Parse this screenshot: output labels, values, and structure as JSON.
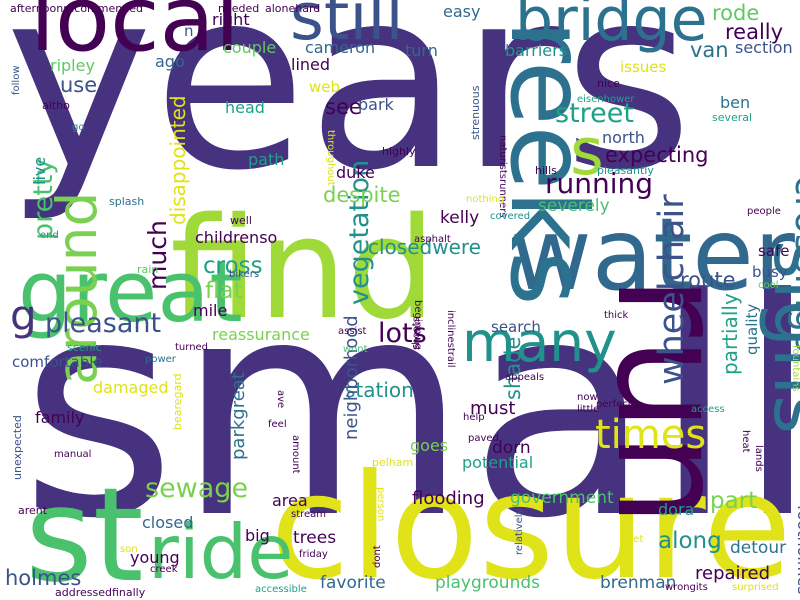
{
  "colors": {
    "background": "#ffffff",
    "palette": [
      "#440154",
      "#46327e",
      "#365c8d",
      "#277f8e",
      "#1fa187",
      "#4ac16d",
      "#a0da39",
      "#fde725"
    ]
  },
  "words": [
    {
      "text": "years",
      "color": "#46327e"
    },
    {
      "text": "small",
      "color": "#46327e"
    },
    {
      "text": "find",
      "color": "#a0da39"
    },
    {
      "text": "closure",
      "color": "#dfe318"
    },
    {
      "text": "water",
      "color": "#31688e"
    },
    {
      "text": "run",
      "color": "#440154"
    },
    {
      "text": "local",
      "color": "#440154"
    },
    {
      "text": "still",
      "color": "#3b528b"
    },
    {
      "text": "bridge",
      "color": "#2c728e"
    },
    {
      "text": "st",
      "color": "#4ac16d"
    },
    {
      "text": "great",
      "color": "#4ac16d"
    },
    {
      "text": "reeks",
      "color": "#2c728e"
    },
    {
      "text": "signs",
      "color": "#2c728e"
    },
    {
      "text": "ride",
      "color": "#4ac16d"
    },
    {
      "text": "s",
      "color": "#a0da39"
    },
    {
      "text": "many",
      "color": "#21918c"
    },
    {
      "text": "around",
      "color": "#7ad151"
    },
    {
      "text": "g",
      "color": "#46327e"
    },
    {
      "text": "times",
      "color": "#dfe318"
    },
    {
      "text": "crossings",
      "color": "#2c728e"
    },
    {
      "text": "wheelchair",
      "color": "#3b528b"
    },
    {
      "text": "running",
      "color": "#440154"
    },
    {
      "text": "sewage",
      "color": "#7ad151"
    },
    {
      "text": "pleasant",
      "color": "#3b528b"
    },
    {
      "text": "vegetation",
      "color": "#21918c"
    },
    {
      "text": "street",
      "color": "#1fa187"
    },
    {
      "text": "pretty",
      "color": "#4ac16d"
    },
    {
      "text": "lots",
      "color": "#440154"
    },
    {
      "text": "much",
      "color": "#440154"
    },
    {
      "text": "cross",
      "color": "#1fa187"
    },
    {
      "text": "flat",
      "color": "#7ad151"
    },
    {
      "text": "part",
      "color": "#7ad151"
    },
    {
      "text": "along",
      "color": "#21918c"
    },
    {
      "text": "route",
      "color": "#3b528b"
    },
    {
      "text": "shade",
      "color": "#21918c"
    },
    {
      "text": "expecting",
      "color": "#440154"
    },
    {
      "text": "holmes",
      "color": "#3b528b"
    },
    {
      "text": "use",
      "color": "#3b528b"
    },
    {
      "text": "see",
      "color": "#440154"
    },
    {
      "text": "despite",
      "color": "#7ad151"
    },
    {
      "text": "rode",
      "color": "#5ec962"
    },
    {
      "text": "really",
      "color": "#440154"
    },
    {
      "text": "van",
      "color": "#2c728e"
    },
    {
      "text": "partially",
      "color": "#1fa187"
    },
    {
      "text": "disappointed",
      "color": "#dfe318"
    },
    {
      "text": "closedwere",
      "color": "#21918c"
    },
    {
      "text": "station",
      "color": "#21918c"
    },
    {
      "text": "neighborhood",
      "color": "#3b528b"
    },
    {
      "text": "parkgreat",
      "color": "#2c728e"
    },
    {
      "text": "must",
      "color": "#440154"
    },
    {
      "text": "repaired",
      "color": "#440154"
    },
    {
      "text": "flooding",
      "color": "#440154"
    },
    {
      "text": "government",
      "color": "#4ac16d"
    },
    {
      "text": "severely",
      "color": "#4ac16d"
    },
    {
      "text": "kelly",
      "color": "#440154"
    },
    {
      "text": "dorn",
      "color": "#440154"
    },
    {
      "text": "trees",
      "color": "#440154"
    },
    {
      "text": "favorite",
      "color": "#31688e"
    },
    {
      "text": "playgrounds",
      "color": "#4ac16d"
    },
    {
      "text": "brenman",
      "color": "#31688e"
    },
    {
      "text": "detour",
      "color": "#2c728e"
    },
    {
      "text": "dora",
      "color": "#1fa187"
    },
    {
      "text": "footholmes",
      "color": "#3b528b"
    },
    {
      "text": "north",
      "color": "#3b528b"
    },
    {
      "text": "ben",
      "color": "#2c728e"
    },
    {
      "text": "section",
      "color": "#3b528b"
    },
    {
      "text": "barriers",
      "color": "#21918c"
    },
    {
      "text": "couple",
      "color": "#5ec962"
    },
    {
      "text": "cameron",
      "color": "#31688e"
    },
    {
      "text": "turn",
      "color": "#31688e"
    },
    {
      "text": "easy",
      "color": "#31688e"
    },
    {
      "text": "right",
      "color": "#440154"
    },
    {
      "text": "lined",
      "color": "#440154"
    },
    {
      "text": "ripley",
      "color": "#5ec962"
    },
    {
      "text": "ago",
      "color": "#31688e"
    },
    {
      "text": "issues",
      "color": "#dfe318"
    },
    {
      "text": "head",
      "color": "#1fa187"
    },
    {
      "text": "park",
      "color": "#3b528b"
    },
    {
      "text": "path",
      "color": "#1fa187"
    },
    {
      "text": "duke",
      "color": "#440154"
    },
    {
      "text": "live",
      "color": "#21918c"
    },
    {
      "text": "childrenso",
      "color": "#440154"
    },
    {
      "text": "mile",
      "color": "#440154"
    },
    {
      "text": "reassurance",
      "color": "#7ad151"
    },
    {
      "text": "comfortable",
      "color": "#3b528b"
    },
    {
      "text": "damaged",
      "color": "#dfe318"
    },
    {
      "text": "family",
      "color": "#440154"
    },
    {
      "text": "area",
      "color": "#440154"
    },
    {
      "text": "closed",
      "color": "#31688e"
    },
    {
      "text": "young",
      "color": "#440154"
    },
    {
      "text": "big",
      "color": "#440154"
    },
    {
      "text": "goes",
      "color": "#7ad151"
    },
    {
      "text": "potential",
      "color": "#1fa187"
    },
    {
      "text": "safe",
      "color": "#440154"
    },
    {
      "text": "busy",
      "color": "#3b528b"
    },
    {
      "text": "quality",
      "color": "#2c728e"
    },
    {
      "text": "search",
      "color": "#3b528b"
    },
    {
      "text": "n",
      "color": "#3b528b"
    },
    {
      "text": "web",
      "color": "#dfe318"
    },
    {
      "text": "nice",
      "color": "#440154"
    },
    {
      "text": "eisenhower",
      "color": "#1fa187"
    },
    {
      "text": "several",
      "color": "#1fa187"
    },
    {
      "text": "highly",
      "color": "#440154"
    },
    {
      "text": "hills",
      "color": "#440154"
    },
    {
      "text": "pleasantly",
      "color": "#21918c"
    },
    {
      "text": "people",
      "color": "#440154"
    },
    {
      "text": "cool",
      "color": "#5ec962"
    },
    {
      "text": "fountains",
      "color": "#a0da39"
    },
    {
      "text": "afternoonrecommended",
      "color": "#440154"
    },
    {
      "text": "needed",
      "color": "#440154"
    },
    {
      "text": "alonehard",
      "color": "#440154"
    },
    {
      "text": "follow",
      "color": "#3b528b"
    },
    {
      "text": "altho",
      "color": "#440154"
    },
    {
      "text": "go",
      "color": "#21918c"
    },
    {
      "text": "throughout",
      "color": "#dfe318"
    },
    {
      "text": "strenuous",
      "color": "#3b528b"
    },
    {
      "text": "naturistsrunners",
      "color": "#440154"
    },
    {
      "text": "nothing",
      "color": "#dfe318"
    },
    {
      "text": "covered",
      "color": "#21918c"
    },
    {
      "text": "asphalt",
      "color": "#440154"
    },
    {
      "text": "well",
      "color": "#440154"
    },
    {
      "text": "splash",
      "color": "#2c728e"
    },
    {
      "text": "end",
      "color": "#21918c"
    },
    {
      "text": "rain",
      "color": "#5ec962"
    },
    {
      "text": "bikers",
      "color": "#3b528b"
    },
    {
      "text": "assist",
      "color": "#440154"
    },
    {
      "text": "wont",
      "color": "#4ac16d"
    },
    {
      "text": "shoots",
      "color": "#440154"
    },
    {
      "text": "beginning",
      "color": "#440154"
    },
    {
      "text": "scenic",
      "color": "#1fa187"
    },
    {
      "text": "turned",
      "color": "#440154"
    },
    {
      "text": "power",
      "color": "#2c728e"
    },
    {
      "text": "thick",
      "color": "#440154"
    },
    {
      "text": "appeals",
      "color": "#440154"
    },
    {
      "text": "inclinestrail",
      "color": "#440154"
    },
    {
      "text": "now",
      "color": "#440154"
    },
    {
      "text": "perfect",
      "color": "#440154"
    },
    {
      "text": "access",
      "color": "#1fa187"
    },
    {
      "text": "little",
      "color": "#440154"
    },
    {
      "text": "help",
      "color": "#440154"
    },
    {
      "text": "paved",
      "color": "#440154"
    },
    {
      "text": "lands",
      "color": "#440154"
    },
    {
      "text": "heat",
      "color": "#440154"
    },
    {
      "text": "bearegard",
      "color": "#dfe318"
    },
    {
      "text": "ave",
      "color": "#440154"
    },
    {
      "text": "feel",
      "color": "#440154"
    },
    {
      "text": "amount",
      "color": "#440154"
    },
    {
      "text": "manual",
      "color": "#440154"
    },
    {
      "text": "arent",
      "color": "#440154"
    },
    {
      "text": "unexpected",
      "color": "#3b528b"
    },
    {
      "text": "pelham",
      "color": "#dfe318"
    },
    {
      "text": "stream",
      "color": "#440154"
    },
    {
      "text": "person",
      "color": "#dfe318"
    },
    {
      "text": "dont",
      "color": "#440154"
    },
    {
      "text": "friday",
      "color": "#440154"
    },
    {
      "text": "relatively",
      "color": "#3b528b"
    },
    {
      "text": "wet",
      "color": "#dfe318"
    },
    {
      "text": "son",
      "color": "#dfe318"
    },
    {
      "text": "creek",
      "color": "#440154"
    },
    {
      "text": "addressedfinally",
      "color": "#440154"
    },
    {
      "text": "accessible",
      "color": "#1fa187"
    },
    {
      "text": "wrongits",
      "color": "#440154"
    },
    {
      "text": "surprised",
      "color": "#dfe318"
    }
  ]
}
